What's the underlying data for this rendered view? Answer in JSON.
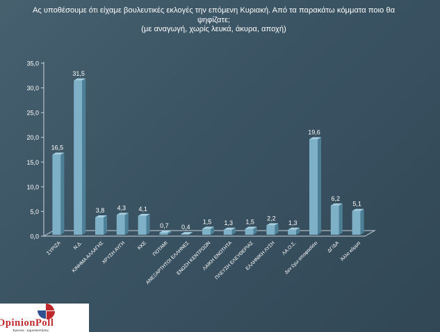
{
  "question": {
    "line1": "Ας υποθέσουμε ότι είχαμε βουλευτικές εκλογές την επόμενη Κυριακή. Από τα παρακάτω κόμματα ποιο θα",
    "line2": "ψηφίζατε;",
    "line3": "(με αναγωγή, χωρίς λευκά, άκυρα, αποχή)"
  },
  "logo": {
    "text": "OpinionPoll",
    "tagline": "Έρευνες - Δημοσκοπήσεις"
  },
  "colors": {
    "bar_front": "#7eb1c8",
    "bar_top": "#a7cfdf",
    "bar_side": "#4d7f96",
    "axis": "#c8d4dc",
    "label": "#ffffff",
    "logo_red": "#c0292b",
    "logo_blue": "#2f4f8f"
  },
  "chart_data": {
    "type": "bar",
    "categories": [
      "ΣΥΡΙΖΑ",
      "Ν.Δ.",
      "ΚΙΝΗΜΑ ΑΛΛΑΓΗΣ",
      "ΧΡΥΣΗ ΑΥΓΗ",
      "ΚΚΕ",
      "ΠΟΤΑΜΙ",
      "ΑΝΕΞΑΡΤΗΤΟΙ ΕΛΛΗΝΕΣ",
      "ΕΝΩΣΗ ΚΕΝΤΡΩΩΝ",
      "ΛΑΙΚΗ ΕΝΟΤΗΤΑ",
      "ΠΛΕΥΣΗ ΕΛΕΥΘΕΡΙΑΣ",
      "ΕΛΛΗΝΙΚΗ ΛΥΣΗ",
      "ΛΑ.Ο.Σ.",
      "Δεν έχω αποφασίσει",
      "ΔΓ/ΔΑ",
      "Άλλο κόμμα"
    ],
    "values": [
      16.5,
      31.5,
      3.8,
      4.3,
      4.1,
      0.7,
      0.4,
      1.5,
      1.3,
      1.5,
      2.2,
      1.3,
      19.6,
      6.2,
      5.1
    ],
    "value_labels": [
      "16,5",
      "31,5",
      "3,8",
      "4,3",
      "4,1",
      "0,7",
      "0,4",
      "1,5",
      "1,3",
      "1,5",
      "2,2",
      "1,3",
      "19,6",
      "6,2",
      "5,1"
    ],
    "y_ticks": [
      0,
      5,
      10,
      15,
      20,
      25,
      30,
      35
    ],
    "y_tick_labels": [
      "0,0",
      "5,0",
      "10,0",
      "15,0",
      "20,0",
      "25,0",
      "30,0",
      "35,0"
    ],
    "ylim": [
      0,
      35
    ],
    "grid": false,
    "legend": false,
    "title": "",
    "xlabel": "",
    "ylabel": ""
  }
}
